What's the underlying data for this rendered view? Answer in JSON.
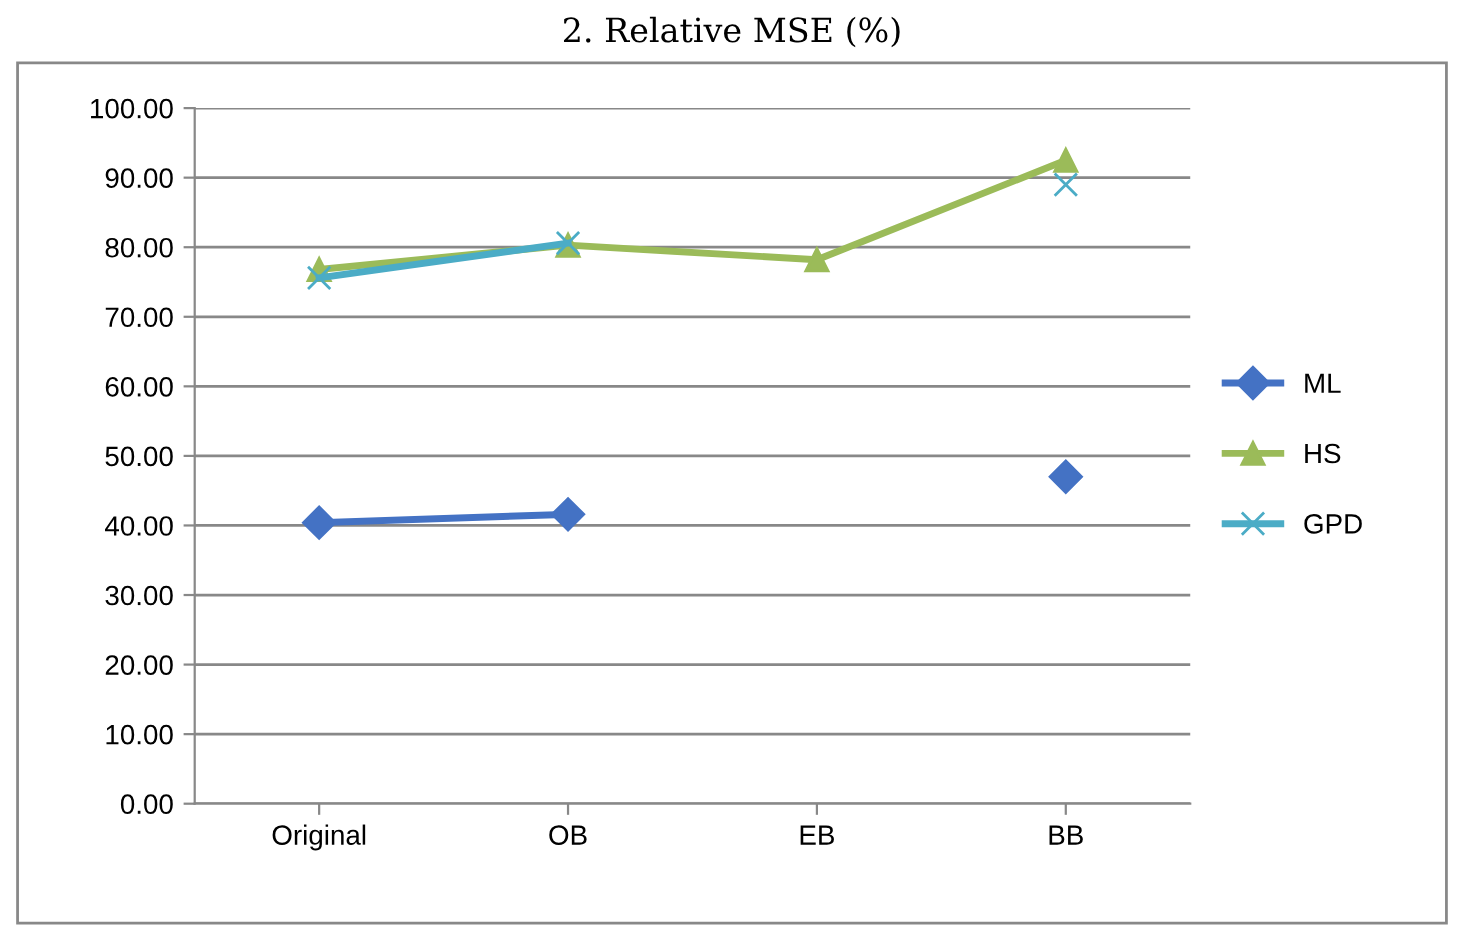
{
  "chart_data": {
    "type": "line",
    "title": "2. Relative MSE (%)",
    "categories": [
      "Original",
      "OB",
      "EB",
      "BB"
    ],
    "series": [
      {
        "name": "ML",
        "color": "#4472c4",
        "marker": "diamond",
        "values": [
          40.4,
          41.6,
          null,
          47.0
        ]
      },
      {
        "name": "HS",
        "color": "#9bbb59",
        "marker": "triangle",
        "values": [
          76.8,
          80.3,
          78.2,
          92.5
        ]
      },
      {
        "name": "GPD",
        "color": "#4bacc6",
        "marker": "cross",
        "values": [
          75.6,
          80.6,
          null,
          89.0
        ]
      }
    ],
    "ylim": [
      0,
      100
    ],
    "yticks": [
      {
        "value": 0,
        "label": "0.00"
      },
      {
        "value": 10,
        "label": "10.00"
      },
      {
        "value": 20,
        "label": "20.00"
      },
      {
        "value": 30,
        "label": "30.00"
      },
      {
        "value": 40,
        "label": "40.00"
      },
      {
        "value": 50,
        "label": "50.00"
      },
      {
        "value": 60,
        "label": "60.00"
      },
      {
        "value": 70,
        "label": "70.00"
      },
      {
        "value": 80,
        "label": "80.00"
      },
      {
        "value": 90,
        "label": "90.00"
      },
      {
        "value": 100,
        "label": "100.00"
      }
    ],
    "grid": "y",
    "legend": "right",
    "line_style": "solid"
  }
}
